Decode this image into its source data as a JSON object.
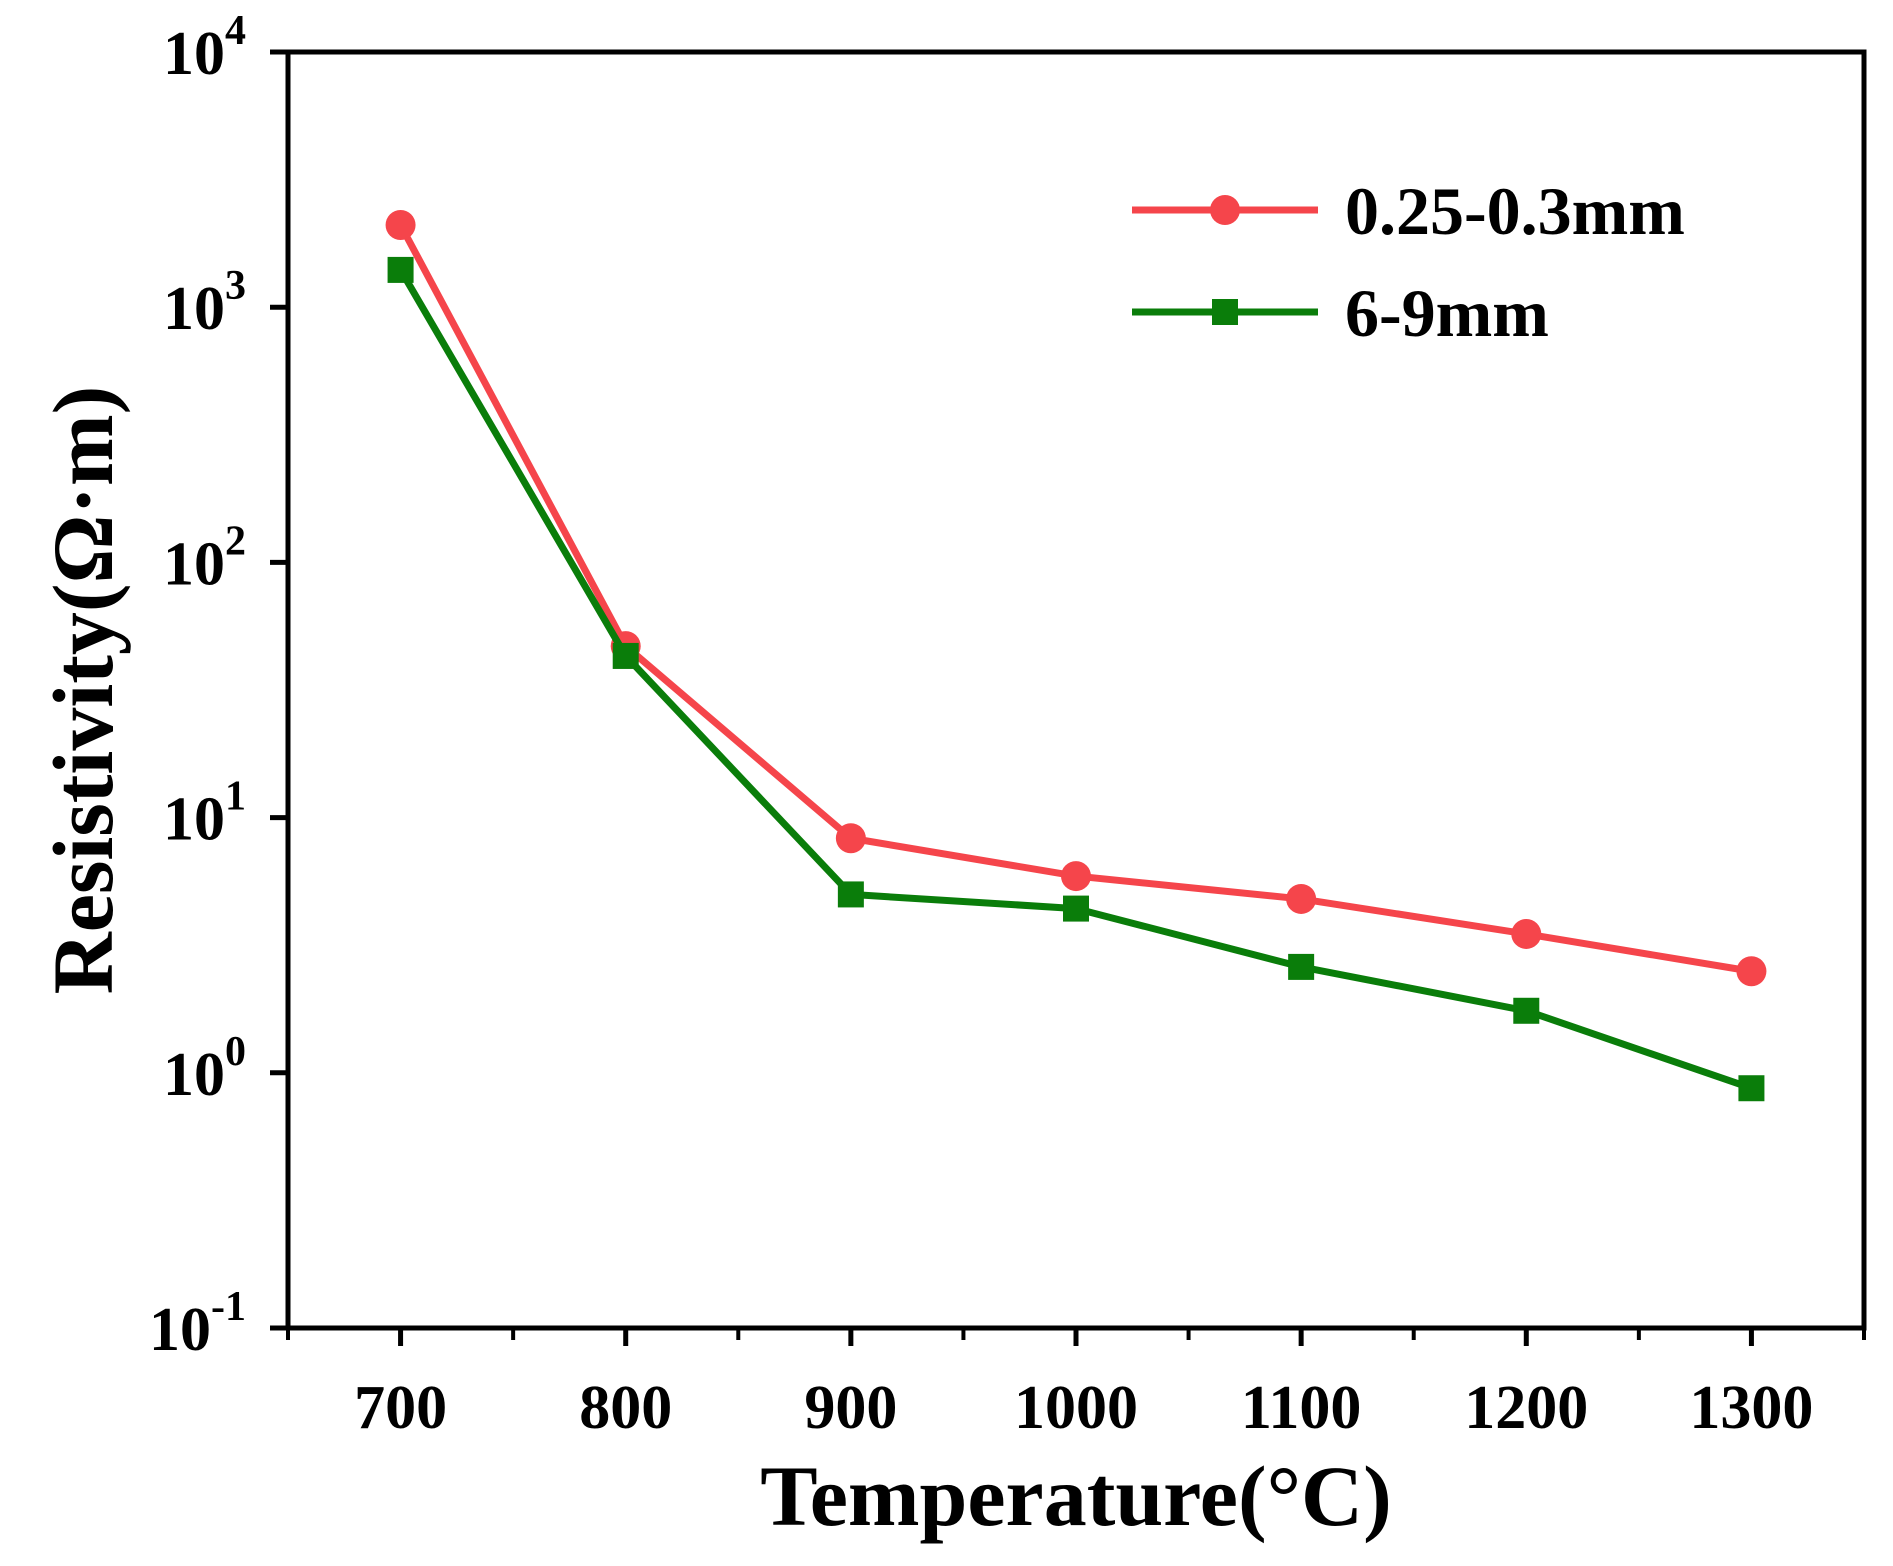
{
  "chart_data": {
    "type": "line",
    "title": "",
    "xlabel": "Temperature(°C)",
    "ylabel": "Resistivity(Ω·m)",
    "x": [
      700,
      800,
      900,
      1000,
      1100,
      1200,
      1300
    ],
    "x_tick_labels": [
      "700",
      "800",
      "900",
      "1000",
      "1100",
      "1200",
      "1300"
    ],
    "xlim": [
      650,
      1350
    ],
    "yscale": "log",
    "ylim": [
      0.1,
      10000
    ],
    "y_tick_values": [
      0.1,
      1,
      10,
      100,
      1000,
      10000
    ],
    "y_tick_labels": [
      {
        "base": "10",
        "exp": "-1"
      },
      {
        "base": "10",
        "exp": "0"
      },
      {
        "base": "10",
        "exp": "1"
      },
      {
        "base": "10",
        "exp": "2"
      },
      {
        "base": "10",
        "exp": "3"
      },
      {
        "base": "10",
        "exp": "4"
      }
    ],
    "grid": false,
    "legend_position": "top-right",
    "series": [
      {
        "name": "0.25-0.3mm",
        "color": "#f5454b",
        "marker": "circle",
        "values": [
          2100,
          47,
          8.3,
          5.9,
          4.8,
          3.5,
          2.5
        ]
      },
      {
        "name": "6-9mm",
        "color": "#0a7d0a",
        "marker": "square",
        "values": [
          1400,
          43,
          5.0,
          4.4,
          2.6,
          1.75,
          0.87
        ]
      }
    ]
  }
}
